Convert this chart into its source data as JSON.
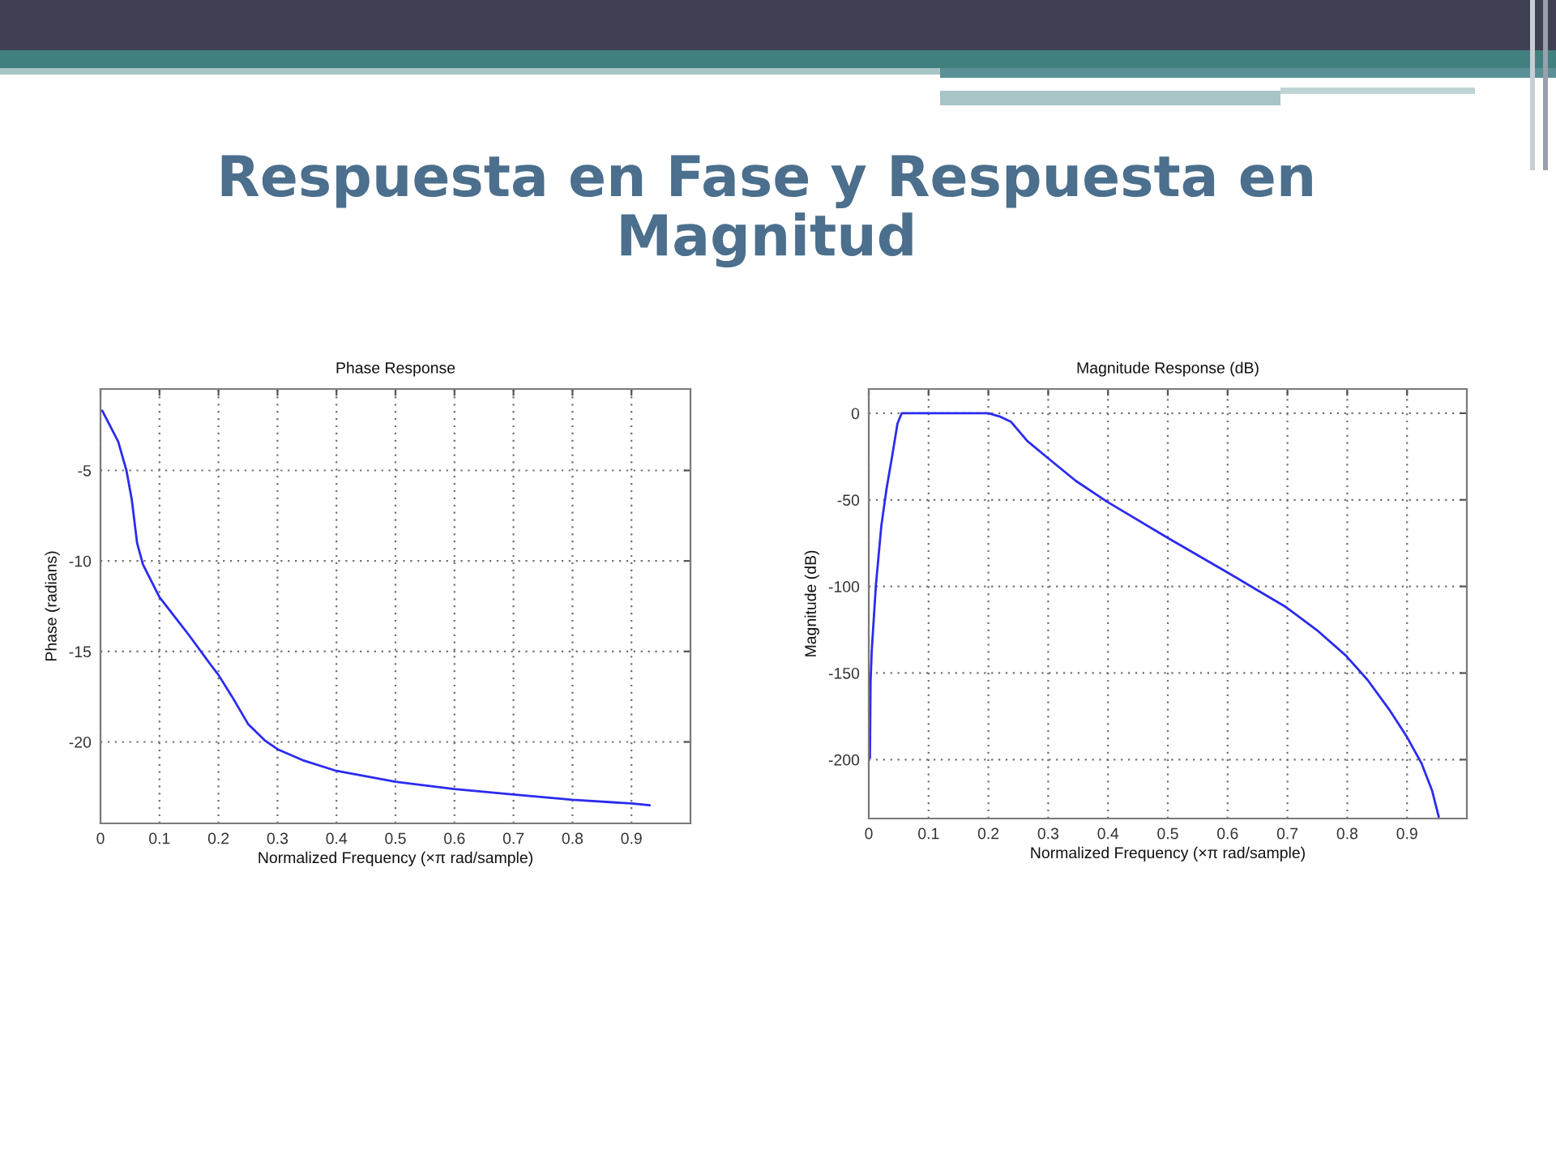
{
  "chart_data": [
    {
      "type": "other",
      "title": "Respuesta en Fase y Respuesta en Magnitud"
    },
    {
      "type": "line",
      "title": "Phase Response",
      "xlabel": "Normalized Frequency (×π rad/sample)",
      "ylabel": "Phase (radians)",
      "x": [
        0.003,
        0.03,
        0.044,
        0.053,
        0.062,
        0.072,
        0.1,
        0.15,
        0.186,
        0.2,
        0.223,
        0.25,
        0.278,
        0.3,
        0.342,
        0.4,
        0.5,
        0.6,
        0.7,
        0.8,
        0.9,
        0.931
      ],
      "series": [
        {
          "color": "#2b2bef",
          "values": [
            -1.7,
            -3.4,
            -5.0,
            -6.6,
            -9.0,
            -10.2,
            -12.0,
            -14.1,
            -15.7,
            -16.3,
            -17.5,
            -19.0,
            -19.9,
            -20.4,
            -21.0,
            -21.6,
            -22.2,
            -22.6,
            -22.9,
            -23.2,
            -23.4,
            -23.5
          ]
        }
      ],
      "xlim": [
        0,
        1
      ],
      "ylim": [
        -24.5,
        -0.5
      ],
      "xticks": [
        0,
        0.1,
        0.2,
        0.3,
        0.4,
        0.5,
        0.6,
        0.7,
        0.8,
        0.9
      ],
      "yticks": [
        -20,
        -15,
        -10,
        -5
      ],
      "grid": true
    },
    {
      "type": "line",
      "title": "Magnitude Response (dB)",
      "xlabel": "Normalized Frequency (×π rad/sample)",
      "ylabel": "Magnitude (dB)",
      "x": [
        0.002,
        0.003,
        0.005,
        0.012,
        0.021,
        0.03,
        0.039,
        0.048,
        0.055,
        0.066,
        0.2,
        0.22,
        0.238,
        0.265,
        0.3,
        0.346,
        0.398,
        0.5,
        0.6,
        0.644,
        0.698,
        0.752,
        0.798,
        0.834,
        0.87,
        0.9,
        0.924,
        0.942,
        0.953
      ],
      "series": [
        {
          "color": "#2b2bef",
          "values": [
            -199,
            -155,
            -137,
            -99,
            -65,
            -43,
            -25,
            -6,
            0,
            0,
            0,
            -2,
            -5,
            -16,
            -26,
            -39,
            -51,
            -72,
            -92,
            -101,
            -112,
            -126,
            -140,
            -154,
            -171,
            -187,
            -202,
            -218,
            -233
          ]
        }
      ],
      "xlim": [
        0,
        1
      ],
      "ylim": [
        -234,
        14
      ],
      "xticks": [
        0,
        0.1,
        0.2,
        0.3,
        0.4,
        0.5,
        0.6,
        0.7,
        0.8,
        0.9
      ],
      "yticks": [
        -200,
        -150,
        -100,
        -50,
        0
      ],
      "grid": true
    }
  ]
}
